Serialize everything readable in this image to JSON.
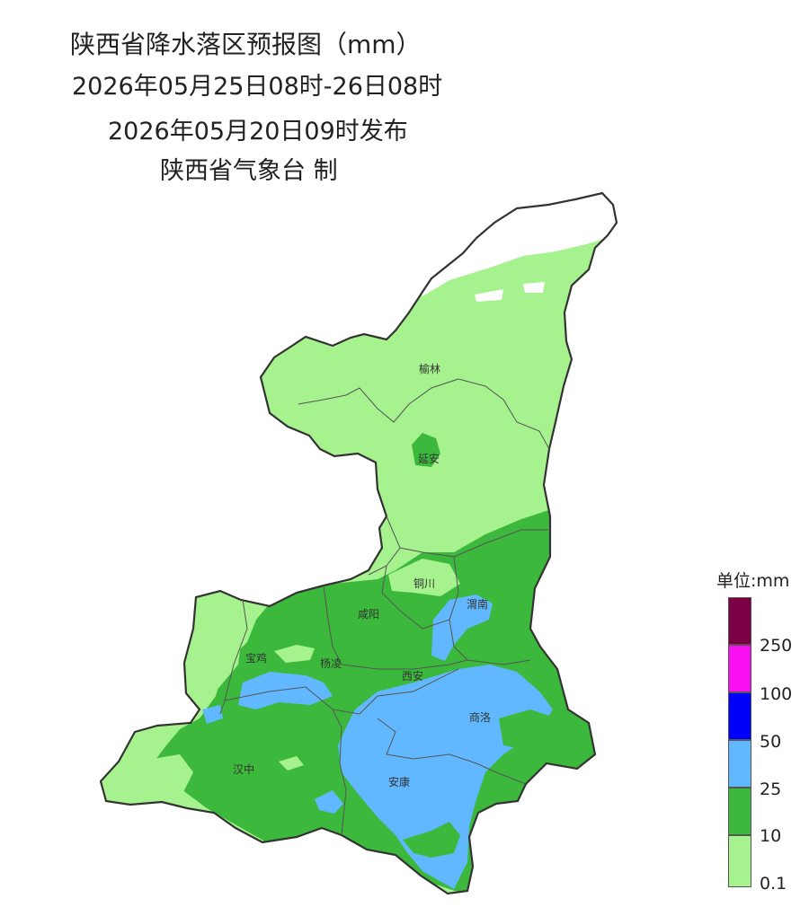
{
  "title": "陕西省降水落区预报图（mm）",
  "period": "2026年05月25日08时-26日08时",
  "issued": "2026年05月20日09时发布",
  "agency": "陕西省气象台 制",
  "cities": [
    "榆林",
    "延安",
    "铜川",
    "渭南",
    "咸阳",
    "宝鸡",
    "杨凌",
    "西安",
    "商洛",
    "汉中",
    "安康"
  ],
  "legend": {
    "unit": "单位:mm",
    "bins": [
      {
        "label": "",
        "color": "#7b0046"
      },
      {
        "label": "250",
        "color": "#f70ff2"
      },
      {
        "label": "100",
        "color": "#0000fa"
      },
      {
        "label": "50",
        "color": "#61b8ff"
      },
      {
        "label": "25",
        "color": "#3cb93c"
      },
      {
        "label": "10",
        "color": "#a6f28e"
      }
    ],
    "bottom_label": "0.1"
  },
  "colors": {
    "light_green": "#a6f28e",
    "green": "#3cb93c",
    "blue": "#61b8ff",
    "outline": "#333333"
  }
}
